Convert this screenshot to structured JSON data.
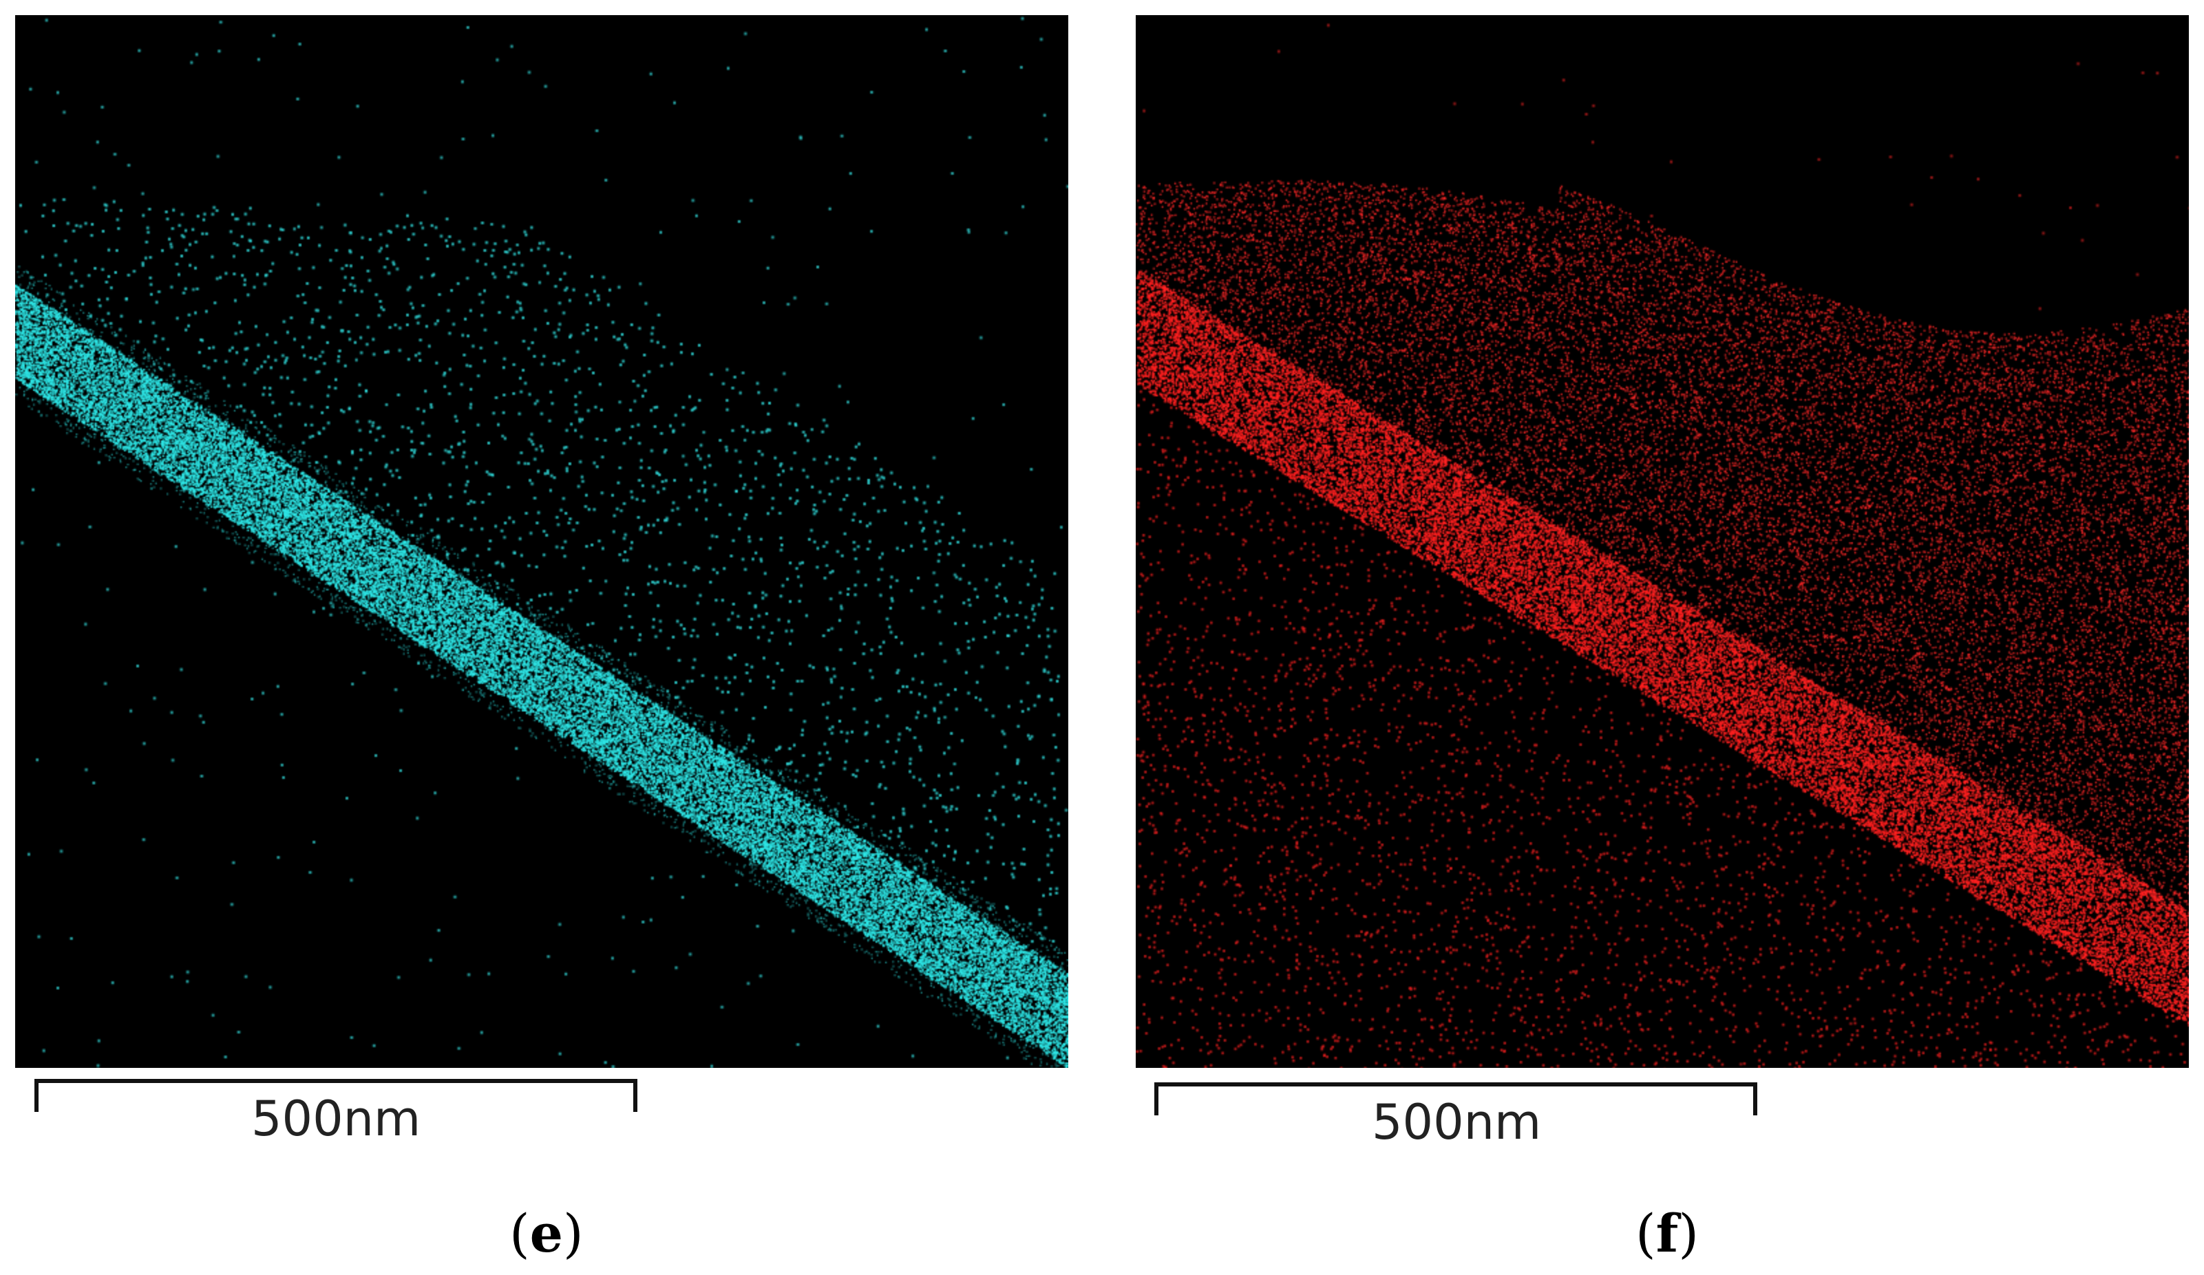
{
  "panels": [
    {
      "id": "e",
      "scale_label": "500nm",
      "caption_open": "(",
      "caption_letter": "e",
      "caption_close": ")",
      "color": "#2ee6e6"
    },
    {
      "id": "f",
      "scale_label": "500nm",
      "caption_open": "(",
      "caption_letter": "f",
      "caption_close": ")",
      "color": "#ff2020"
    }
  ]
}
